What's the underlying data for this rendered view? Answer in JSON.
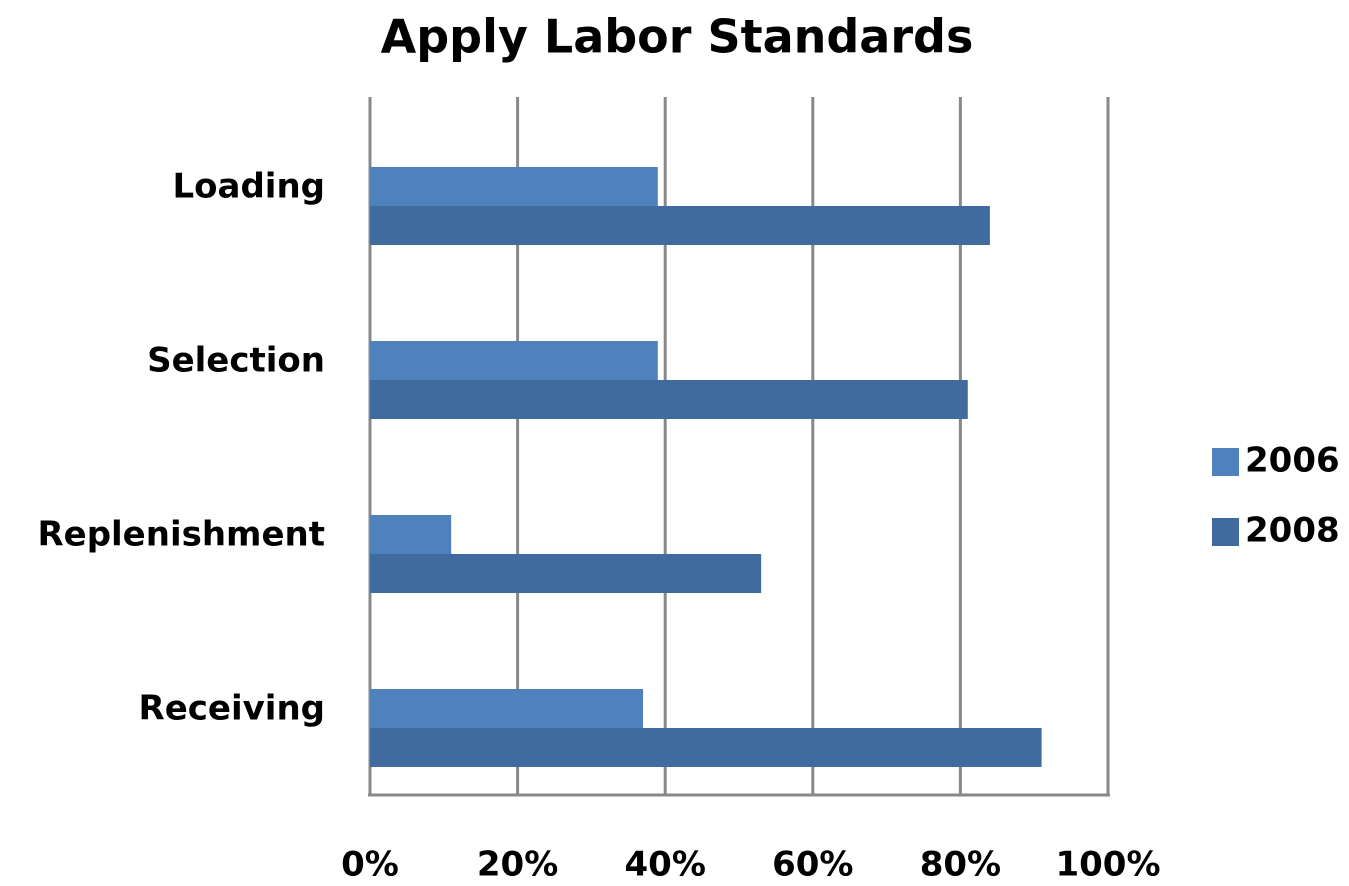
{
  "chart_data": {
    "type": "bar",
    "orientation": "horizontal",
    "title": "Apply Labor Standards",
    "categories": [
      "Loading",
      "Selection",
      "Replenishment",
      "Receiving"
    ],
    "series": [
      {
        "name": "2006",
        "color": "#4f81bd",
        "values": [
          39,
          39,
          11,
          37
        ]
      },
      {
        "name": "2008",
        "color": "#3f6b9e",
        "values": [
          84,
          81,
          53,
          91
        ]
      }
    ],
    "xlim": [
      0,
      100
    ],
    "xticks": [
      {
        "value": 0,
        "label": "0%"
      },
      {
        "value": 20,
        "label": "20%"
      },
      {
        "value": 40,
        "label": "40%"
      },
      {
        "value": 60,
        "label": "60%"
      },
      {
        "value": 80,
        "label": "80%"
      },
      {
        "value": 100,
        "label": "100%"
      }
    ],
    "grid": true,
    "legend": "right"
  }
}
